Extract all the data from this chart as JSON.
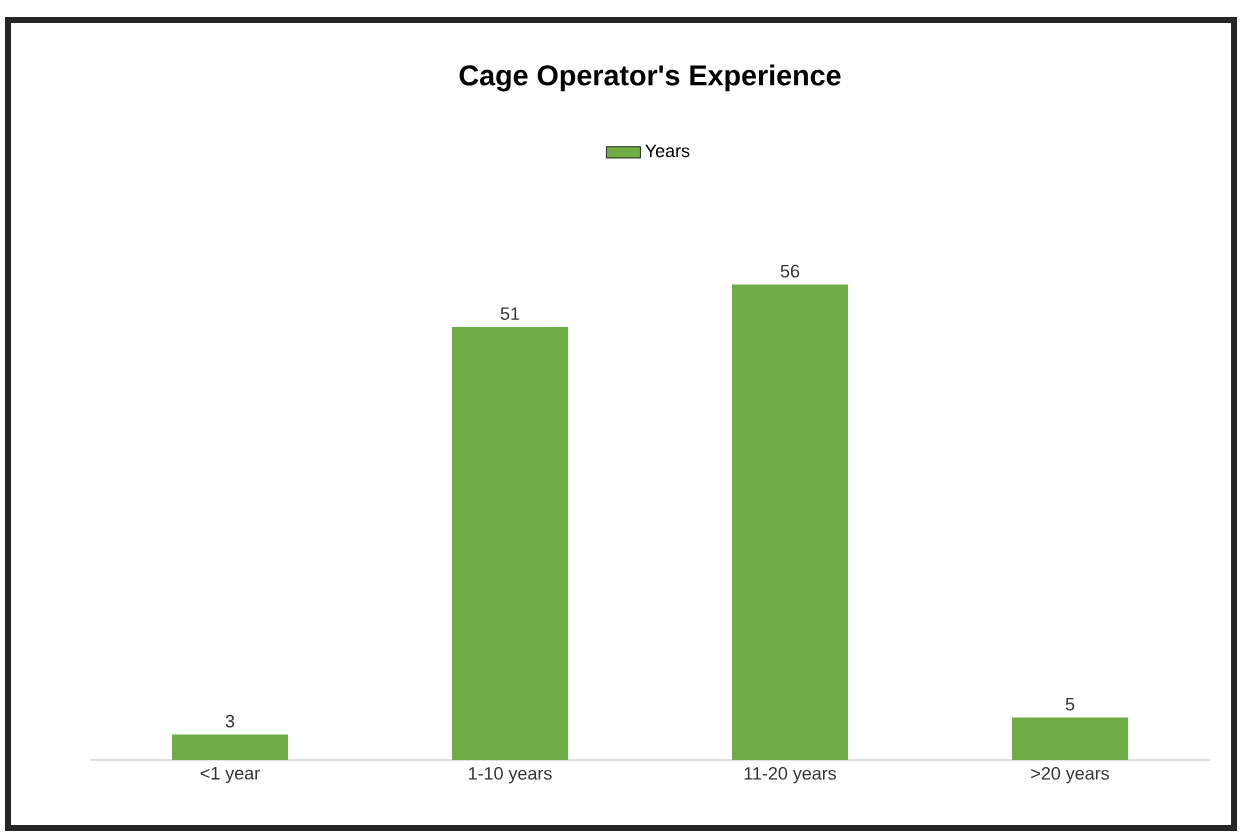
{
  "chart_data": {
    "type": "bar",
    "title": "Cage Operator's Experience",
    "categories": [
      "<1 year",
      "1-10 years",
      "11-20 years",
      ">20 years"
    ],
    "series": [
      {
        "name": "Years",
        "color": "#70ad47",
        "values": [
          3,
          51,
          56,
          5
        ]
      }
    ],
    "data_labels": true,
    "legend": "top",
    "tick_labels": "x"
  }
}
